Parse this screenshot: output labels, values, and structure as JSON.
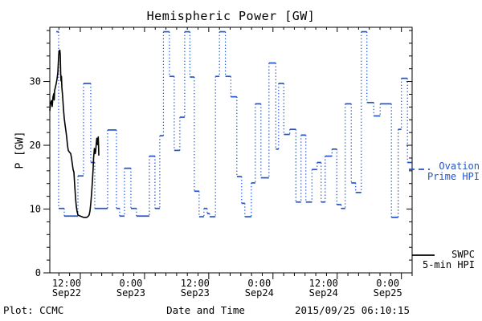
{
  "title": "Hemispheric Power [GW]",
  "footer": {
    "plot_credit": "Plot: CCMC",
    "xlabel": "Date and Time",
    "timestamp": "2015/09/25 06:10:15"
  },
  "legend": {
    "ovation": {
      "label_line1": "Ovation",
      "label_line2": "Prime HPI",
      "color": "#2255CC",
      "line_style": "dashed"
    },
    "swpc": {
      "label_line1": "SWPC",
      "label_line2": "5-min HPI",
      "color": "#000000",
      "line_style": "solid"
    }
  },
  "chart_data": {
    "type": "line",
    "title": "Hemispheric Power [GW]",
    "xlabel": "Date and Time",
    "ylabel": "P [GW]",
    "x_unit": "hours since Sep22 00:00",
    "xlim": [
      6.3,
      74.0
    ],
    "ylim": [
      0,
      38.5
    ],
    "grid": false,
    "legend_position": "right-outside",
    "x_minor_step_hours": 2,
    "y_minor_step": 2,
    "y_major_ticks": [
      0,
      10,
      20,
      30
    ],
    "x_major_ticks": [
      {
        "t": 12,
        "line1": "12:00",
        "line2": "Sep22"
      },
      {
        "t": 24,
        "line1": "0:00",
        "line2": "Sep23"
      },
      {
        "t": 36,
        "line1": "12:00",
        "line2": "Sep23"
      },
      {
        "t": 48,
        "line1": "0:00",
        "line2": "Sep24"
      },
      {
        "t": 60,
        "line1": "12:00",
        "line2": "Sep24"
      },
      {
        "t": 72,
        "line1": "0:00",
        "line2": "Sep25"
      }
    ],
    "series": [
      {
        "name": "Ovation Prime HPI",
        "color": "#2255CC",
        "style": "step levels solid, risers dotted",
        "steps_t0_t1_gw": [
          [
            7.5,
            7.95,
            37.8
          ],
          [
            7.95,
            9.0,
            10.1
          ],
          [
            9.0,
            11.55,
            8.9
          ],
          [
            11.55,
            12.6,
            15.2
          ],
          [
            12.6,
            13.95,
            29.7
          ],
          [
            13.95,
            14.7,
            17.3
          ],
          [
            14.7,
            17.1,
            10.1
          ],
          [
            17.1,
            18.75,
            22.4
          ],
          [
            18.75,
            19.35,
            10.1
          ],
          [
            19.35,
            20.25,
            8.9
          ],
          [
            20.25,
            21.45,
            16.4
          ],
          [
            21.45,
            22.5,
            10.1
          ],
          [
            22.5,
            24.9,
            8.9
          ],
          [
            24.9,
            25.95,
            18.3
          ],
          [
            25.95,
            26.85,
            10.1
          ],
          [
            26.85,
            27.53,
            21.5
          ],
          [
            27.53,
            28.65,
            37.8
          ],
          [
            28.65,
            29.55,
            30.8
          ],
          [
            29.55,
            30.6,
            19.2
          ],
          [
            30.6,
            31.5,
            24.4
          ],
          [
            31.5,
            32.48,
            37.8
          ],
          [
            32.48,
            33.3,
            30.7
          ],
          [
            33.3,
            34.2,
            12.8
          ],
          [
            34.2,
            35.1,
            8.8
          ],
          [
            35.1,
            35.7,
            10.1
          ],
          [
            35.7,
            36.15,
            9.3
          ],
          [
            36.15,
            37.25,
            8.8
          ],
          [
            37.25,
            38.0,
            30.8
          ],
          [
            38.0,
            39.11,
            37.8
          ],
          [
            39.11,
            40.13,
            30.8
          ],
          [
            40.13,
            41.25,
            27.6
          ],
          [
            41.25,
            42.15,
            15.1
          ],
          [
            42.15,
            42.75,
            10.9
          ],
          [
            42.75,
            43.95,
            8.8
          ],
          [
            43.95,
            44.7,
            14.1
          ],
          [
            44.7,
            45.75,
            26.5
          ],
          [
            45.75,
            47.25,
            14.9
          ],
          [
            47.25,
            48.53,
            32.9
          ],
          [
            48.53,
            49.05,
            19.4
          ],
          [
            49.05,
            50.03,
            29.7
          ],
          [
            50.03,
            51.15,
            21.7
          ],
          [
            51.15,
            52.28,
            22.5
          ],
          [
            52.28,
            53.25,
            11.1
          ],
          [
            53.25,
            54.15,
            21.6
          ],
          [
            54.15,
            55.28,
            11.1
          ],
          [
            55.28,
            56.25,
            16.2
          ],
          [
            56.25,
            57.0,
            17.3
          ],
          [
            57.0,
            57.75,
            11.1
          ],
          [
            57.75,
            59.03,
            18.3
          ],
          [
            59.03,
            59.93,
            19.4
          ],
          [
            59.93,
            60.75,
            10.7
          ],
          [
            60.75,
            61.5,
            10.1
          ],
          [
            61.5,
            62.63,
            26.5
          ],
          [
            62.63,
            63.45,
            14.1
          ],
          [
            63.45,
            64.5,
            12.6
          ],
          [
            64.5,
            65.55,
            37.8
          ],
          [
            65.55,
            66.83,
            26.7
          ],
          [
            66.83,
            68.03,
            24.6
          ],
          [
            68.03,
            70.13,
            26.5
          ],
          [
            70.13,
            71.4,
            8.7
          ],
          [
            71.4,
            72.0,
            22.5
          ],
          [
            72.0,
            73.13,
            30.5
          ],
          [
            73.13,
            73.95,
            17.3
          ]
        ]
      },
      {
        "name": "SWPC 5-min HPI",
        "color": "#000000",
        "style": "solid line",
        "points_t_gw": [
          [
            6.3,
            25.4
          ],
          [
            6.45,
            26.6
          ],
          [
            6.6,
            27.0
          ],
          [
            6.75,
            26.1
          ],
          [
            6.9,
            27.6
          ],
          [
            7.05,
            28.1
          ],
          [
            7.13,
            27.1
          ],
          [
            7.2,
            28.6
          ],
          [
            7.35,
            29.1
          ],
          [
            7.5,
            29.7
          ],
          [
            7.65,
            30.4
          ],
          [
            7.8,
            31.4
          ],
          [
            7.95,
            33.9
          ],
          [
            8.03,
            34.8
          ],
          [
            8.1,
            34.4
          ],
          [
            8.18,
            34.9
          ],
          [
            8.25,
            34.2
          ],
          [
            8.33,
            31.4
          ],
          [
            8.4,
            30.1
          ],
          [
            8.48,
            30.8
          ],
          [
            8.55,
            29.1
          ],
          [
            8.7,
            27.6
          ],
          [
            8.85,
            25.7
          ],
          [
            9.0,
            24.2
          ],
          [
            9.15,
            23.2
          ],
          [
            9.3,
            22.3
          ],
          [
            9.45,
            21.3
          ],
          [
            9.6,
            20.0
          ],
          [
            9.75,
            19.2
          ],
          [
            9.9,
            19.0
          ],
          [
            10.2,
            18.7
          ],
          [
            10.35,
            18.0
          ],
          [
            10.5,
            17.1
          ],
          [
            10.65,
            16.2
          ],
          [
            10.8,
            15.8
          ],
          [
            10.95,
            13.7
          ],
          [
            11.1,
            11.8
          ],
          [
            11.25,
            10.4
          ],
          [
            11.4,
            9.6
          ],
          [
            11.55,
            9.1
          ],
          [
            11.7,
            9.0
          ],
          [
            12.0,
            8.9
          ],
          [
            12.6,
            8.7
          ],
          [
            13.2,
            8.7
          ],
          [
            13.5,
            8.9
          ],
          [
            13.65,
            9.1
          ],
          [
            13.8,
            9.7
          ],
          [
            13.95,
            10.9
          ],
          [
            14.1,
            12.4
          ],
          [
            14.25,
            14.3
          ],
          [
            14.4,
            16.5
          ],
          [
            14.48,
            18.0
          ],
          [
            14.55,
            18.7
          ],
          [
            14.63,
            19.5
          ],
          [
            14.7,
            19.2
          ],
          [
            14.78,
            18.7
          ],
          [
            14.85,
            19.0
          ],
          [
            14.93,
            19.7
          ],
          [
            15.0,
            20.5
          ],
          [
            15.08,
            21.1
          ],
          [
            15.15,
            20.6
          ],
          [
            15.23,
            20.1
          ],
          [
            15.3,
            21.0
          ],
          [
            15.35,
            21.3
          ],
          [
            15.39,
            20.3
          ],
          [
            15.45,
            18.4
          ]
        ]
      }
    ]
  }
}
